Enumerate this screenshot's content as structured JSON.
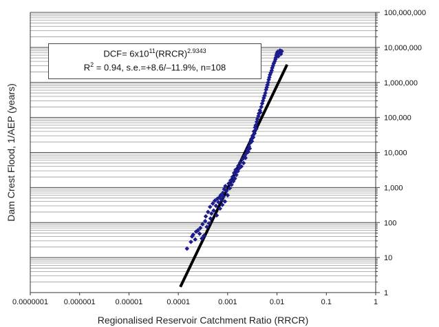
{
  "chart_data": {
    "type": "scatter",
    "xlabel": "Regionalised Reservoir Catchment Ratio (RRCR)",
    "ylabel": "Dam Crest Flood, 1/AEP (years)",
    "x_scale": "log",
    "y_scale": "log",
    "xlim": [
      1e-07,
      1
    ],
    "ylim": [
      1,
      100000000
    ],
    "x_tick_labels": [
      "0.0000001",
      "0.000001",
      "0.00001",
      "0.0001",
      "0.001",
      "0.01",
      "0.1",
      "1"
    ],
    "y_tick_labels": [
      "1",
      "10",
      "100",
      "1,000",
      "10,000",
      "100,000",
      "1,000,000",
      "10,000,000",
      "100,000,000"
    ],
    "grid": "horizontal minor and major lines",
    "annotation": {
      "line1_prefix": "DCF= 6x10",
      "line1_exp1": "11",
      "line1_mid": "(RRCR)",
      "line1_exp2": "2.9343",
      "line2_prefix": "R",
      "line2_exp": "2",
      "line2_rest": " = 0.94, s.e.=+8.6/–11.9%, n=108"
    },
    "fit": {
      "coefficient": 600000000000.0,
      "exponent": 2.9343,
      "x_range": [
        0.00011,
        0.016
      ]
    },
    "colors": {
      "points": "#1c1c8c",
      "fit_line": "#000000",
      "grid": "#555555"
    },
    "series": [
      {
        "points": [
          [
            0.00015,
            18
          ],
          [
            0.00018,
            28
          ],
          [
            0.00019,
            40
          ],
          [
            0.0002,
            45
          ],
          [
            0.00022,
            33
          ],
          [
            0.00023,
            55
          ],
          [
            0.00025,
            60
          ],
          [
            0.00027,
            48
          ],
          [
            0.00028,
            70
          ],
          [
            0.0003,
            35
          ],
          [
            0.00031,
            90
          ],
          [
            0.00033,
            42
          ],
          [
            0.00035,
            110
          ],
          [
            0.00036,
            150
          ],
          [
            0.00038,
            75
          ],
          [
            0.0004,
            200
          ],
          [
            0.00042,
            95
          ],
          [
            0.00044,
            280
          ],
          [
            0.00045,
            130
          ],
          [
            0.00047,
            180
          ],
          [
            0.0005,
            350
          ],
          [
            0.00052,
            220
          ],
          [
            0.00055,
            420
          ],
          [
            0.00058,
            300
          ],
          [
            0.0006,
            160
          ],
          [
            0.00062,
            480
          ],
          [
            0.00065,
            380
          ],
          [
            0.00068,
            520
          ],
          [
            0.0007,
            250
          ],
          [
            0.00072,
            600
          ],
          [
            0.00075,
            450
          ],
          [
            0.00078,
            320
          ],
          [
            0.0008,
            700
          ],
          [
            0.00082,
            550
          ],
          [
            0.00085,
            900
          ],
          [
            0.00088,
            400
          ],
          [
            0.0009,
            1100
          ],
          [
            0.00095,
            800
          ],
          [
            0.001,
            600
          ],
          [
            0.00105,
            1300
          ],
          [
            0.0011,
            950
          ],
          [
            0.00115,
            1600
          ],
          [
            0.0012,
            1200
          ],
          [
            0.00125,
            2000
          ],
          [
            0.0013,
            1500
          ],
          [
            0.00135,
            2600
          ],
          [
            0.0014,
            1800
          ],
          [
            0.00145,
            3200
          ],
          [
            0.0015,
            2300
          ],
          [
            0.0016,
            2900
          ],
          [
            0.00165,
            4200
          ],
          [
            0.0017,
            3500
          ],
          [
            0.0018,
            5200
          ],
          [
            0.0019,
            4000
          ],
          [
            0.002,
            6500
          ],
          [
            0.0021,
            5000
          ],
          [
            0.0022,
            8000
          ],
          [
            0.0023,
            7000
          ],
          [
            0.0024,
            9500
          ],
          [
            0.0025,
            12000
          ],
          [
            0.0026,
            10500
          ],
          [
            0.0027,
            15000
          ],
          [
            0.0028,
            13000
          ],
          [
            0.0029,
            19000
          ],
          [
            0.003,
            24000
          ],
          [
            0.0031,
            21000
          ],
          [
            0.0032,
            30000
          ],
          [
            0.0033,
            27000
          ],
          [
            0.0034,
            40000
          ],
          [
            0.0035,
            35000
          ],
          [
            0.0036,
            52000
          ],
          [
            0.0037,
            60000
          ],
          [
            0.0038,
            47000
          ],
          [
            0.0039,
            75000
          ],
          [
            0.004,
            90000
          ],
          [
            0.0042,
            110000
          ],
          [
            0.0043,
            130000
          ],
          [
            0.0045,
            160000
          ],
          [
            0.0046,
            140000
          ],
          [
            0.0048,
            200000
          ],
          [
            0.005,
            250000
          ],
          [
            0.0052,
            300000
          ],
          [
            0.0054,
            360000
          ],
          [
            0.0056,
            420000
          ],
          [
            0.0058,
            500000
          ],
          [
            0.006,
            620000
          ],
          [
            0.0062,
            720000
          ],
          [
            0.0064,
            850000
          ],
          [
            0.0066,
            1000000
          ],
          [
            0.0068,
            1200000
          ],
          [
            0.007,
            1400000
          ],
          [
            0.0072,
            1650000
          ],
          [
            0.0075,
            1900000
          ],
          [
            0.0078,
            2200000
          ],
          [
            0.008,
            2600000
          ],
          [
            0.0083,
            3000000
          ],
          [
            0.0086,
            3500000
          ],
          [
            0.009,
            4000000
          ],
          [
            0.0093,
            4600000
          ],
          [
            0.0095,
            5200000
          ],
          [
            0.0097,
            6000000
          ],
          [
            0.01,
            6800000
          ],
          [
            0.0103,
            7500000
          ],
          [
            0.0106,
            5600000
          ],
          [
            0.011,
            7000000
          ],
          [
            0.0115,
            8200000
          ],
          [
            0.012,
            6500000
          ],
          [
            0.0125,
            7800000
          ]
        ]
      }
    ]
  }
}
